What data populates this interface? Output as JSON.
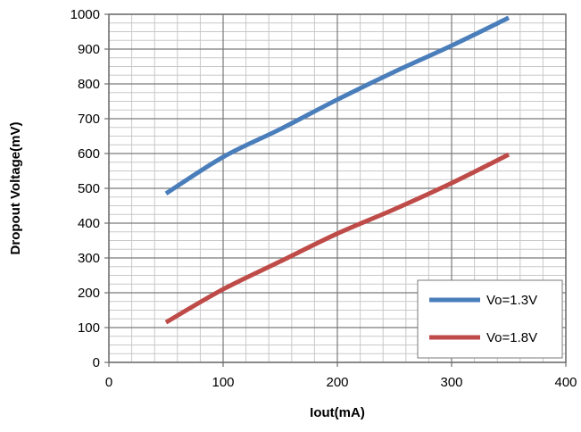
{
  "chart_data": {
    "type": "line",
    "title": "",
    "xlabel": "Iout(mA)",
    "ylabel": "Dropout Voltage(mV)",
    "xlim": [
      0,
      400
    ],
    "ylim": [
      0,
      1000
    ],
    "x_ticks": [
      0,
      100,
      200,
      300,
      400
    ],
    "y_ticks": [
      0,
      100,
      200,
      300,
      400,
      500,
      600,
      700,
      800,
      900,
      1000
    ],
    "x_tick_labels": [
      "0",
      "100",
      "200",
      "300",
      "400"
    ],
    "y_tick_labels": [
      "0",
      "100",
      "200",
      "300",
      "400",
      "500",
      "600",
      "700",
      "800",
      "900",
      "1000"
    ],
    "grid": true,
    "legend_position": "bottom-right",
    "series": [
      {
        "name": "Vo=1.3V",
        "color": "#4a7ebb",
        "x": [
          50,
          100,
          150,
          200,
          250,
          300,
          350
        ],
        "y": [
          485,
          590,
          670,
          755,
          835,
          910,
          990
        ]
      },
      {
        "name": "Vo=1.8V",
        "color": "#be4b48",
        "x": [
          50,
          100,
          150,
          200,
          250,
          300,
          350
        ],
        "y": [
          115,
          210,
          290,
          370,
          440,
          515,
          597
        ]
      }
    ]
  }
}
